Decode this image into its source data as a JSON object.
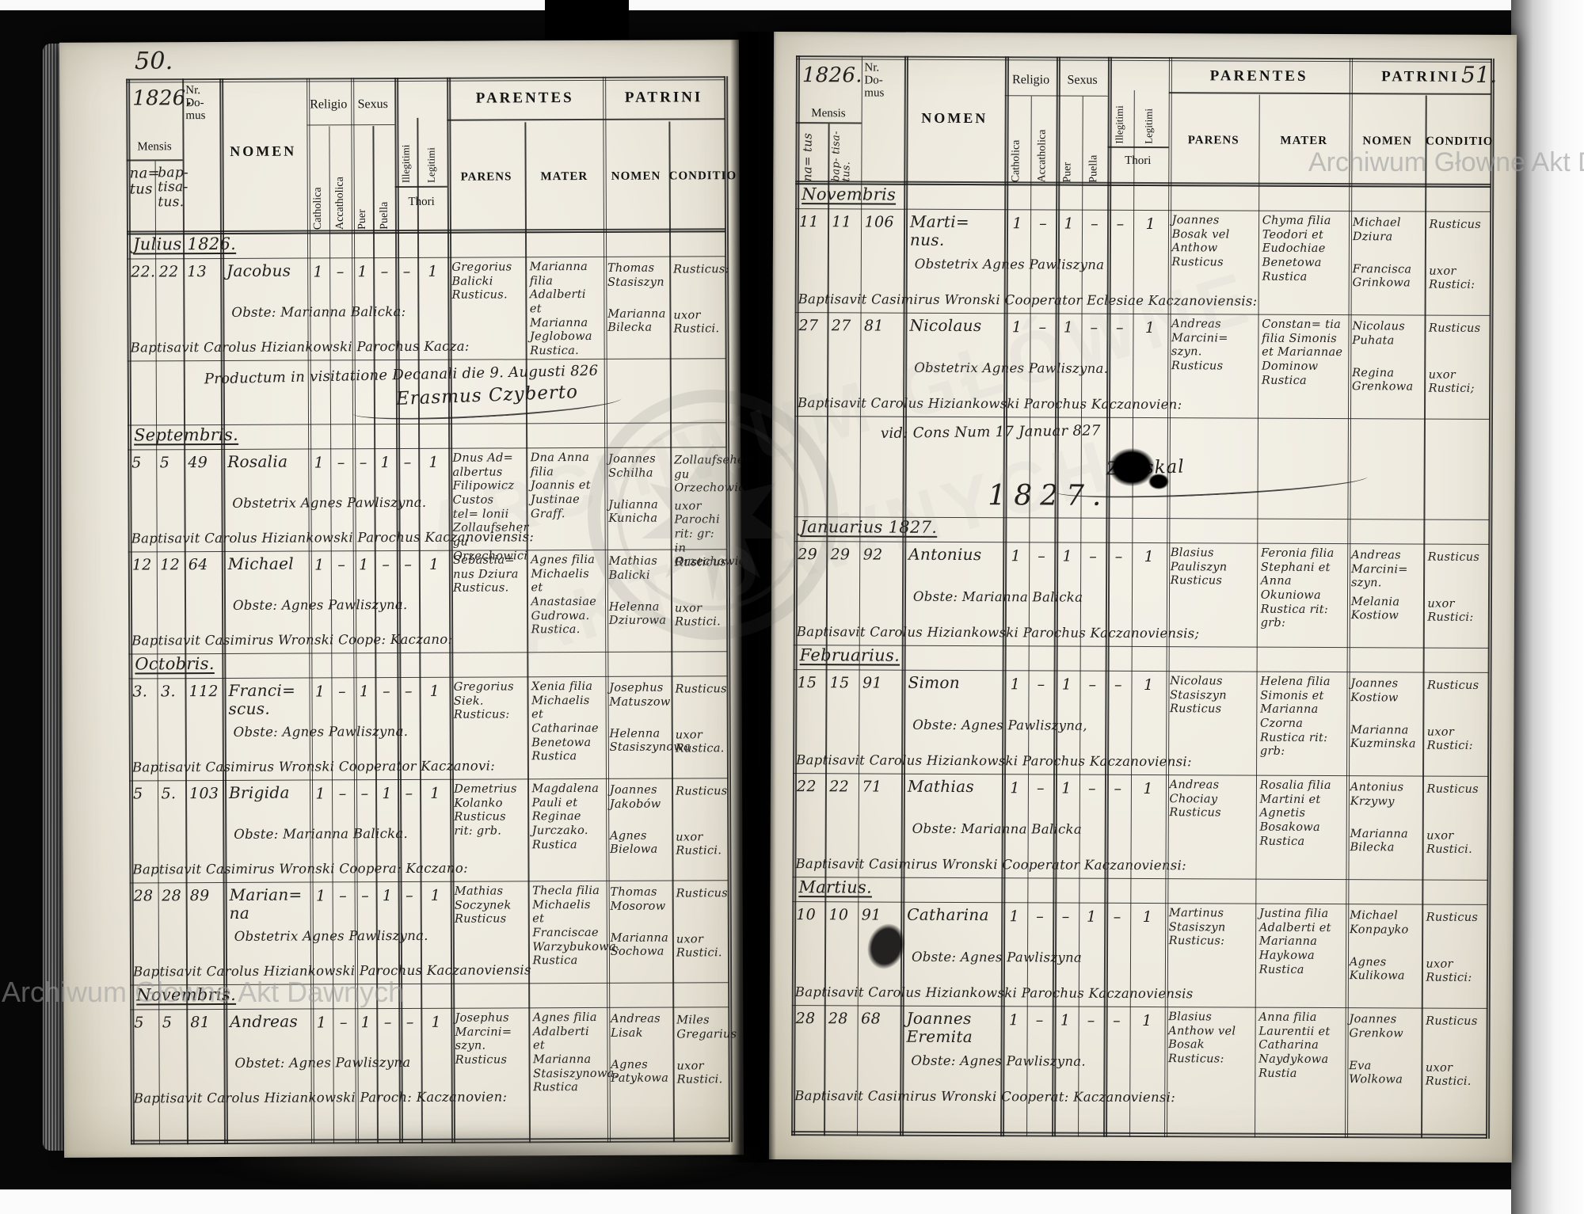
{
  "book": {
    "left_page_number": "50.",
    "right_page_number": "51.",
    "watermark": "Archiwum Głowne Akt Dawnych",
    "watermark_big_1": "ARCHIWUM GŁÓWNE",
    "watermark_big_2": "AKT DAWNYCH"
  },
  "header": {
    "year": "1826.",
    "nr_domus": "Nr.\nDo-\nmus",
    "mensis": "Mensis",
    "natus": "na=\ntus",
    "baptisatus": "bap-\ntisa-\ntus.",
    "nomen": "NOMEN",
    "religio": "Religio",
    "catholica": "Catholica",
    "accatholica": "Accatholica",
    "sexus": "Sexus",
    "puer": "Puer",
    "puella": "Puella",
    "illegitimi": "Illegitimi",
    "legitimi": "Legitimi",
    "thori": "Thori",
    "parentes": "PARENTES",
    "parens": "PARENS",
    "mater": "MATER",
    "patrini": "PATRINI",
    "patrini_nomen": "NOMEN",
    "conditio": "CONDITIO"
  },
  "left_page": {
    "sections": [
      {
        "month": "Julius 1826.",
        "records": [
          {
            "natus": "22.",
            "baptisatus": "22",
            "domus": "13",
            "nomen": "Jacobus",
            "catholica": "1",
            "accatholica": "–",
            "puer": "1",
            "puella": "–",
            "illegitimi": "–",
            "legitimi": "1",
            "obstetrix": "Obste: Marianna Balicka:",
            "baptisavit": "Baptisavit Carolus Hiziankowski Parochus Kacza:",
            "parens": "Gregorius Balicki Rusticus.",
            "mater": "Marianna filia Adalberti et Marianna Jeglobowa Rustica.",
            "patrini": [
              "Thomas Stasiszyn",
              "Marianna Bilecka"
            ],
            "conditio": [
              "Rusticus:",
              "uxor Rustici."
            ]
          }
        ],
        "note": {
          "line1": "Productum in visitatione Decanali die 9. Augusti 826",
          "signature": "Erasmus Czyberto"
        }
      },
      {
        "month": "Septembris.",
        "records": [
          {
            "natus": "5",
            "baptisatus": "5",
            "domus": "49",
            "nomen": "Rosalia",
            "catholica": "1",
            "accatholica": "–",
            "puer": "–",
            "puella": "1",
            "illegitimi": "–",
            "legitimi": "1",
            "obstetrix": "Obstetrix Agnes Pawliszyna.",
            "baptisavit": "Baptisavit Carolus Hiziankowski Parochus Kaczanoviensis:",
            "parens": "Dnus Ad= albertus Filipowicz Custos tel= lonii Zollaufseher gu Orzechowici",
            "mater": "Dna Anna filia Joannis et Justinae Graff.",
            "patrini": [
              "Joannes Schilha",
              "Julianna Kunicha"
            ],
            "conditio": [
              "Zollaufseher gu Orzechowici.",
              "uxor Parochi rit: gr: in Orzechowici."
            ]
          },
          {
            "natus": "12",
            "baptisatus": "12",
            "domus": "64",
            "nomen": "Michael",
            "catholica": "1",
            "accatholica": "–",
            "puer": "1",
            "puella": "–",
            "illegitimi": "–",
            "legitimi": "1",
            "obstetrix": "Obste: Agnes Pawliszyna.",
            "baptisavit": "Baptisavit Casimirus Wronski Coope: Kaczano:",
            "parens": "Sebastia= nus Dziura Rusticus.",
            "mater": "Agnes filia Michaelis et Anastasiae Gudrowa. Rustica.",
            "patrini": [
              "Mathias Balicki",
              "Helenna Dziurowa"
            ],
            "conditio": [
              "Rusticus",
              "uxor Rustici."
            ]
          }
        ]
      },
      {
        "month": "Octobris.",
        "records": [
          {
            "natus": "3.",
            "baptisatus": "3.",
            "domus": "112",
            "nomen": "Franci=\nscus.",
            "catholica": "1",
            "accatholica": "–",
            "puer": "1",
            "puella": "–",
            "illegitimi": "–",
            "legitimi": "1",
            "obstetrix": "Obste: Agnes Pawliszyna.",
            "baptisavit": "Baptisavit Casimirus Wronski Cooperator Kaczanovi:",
            "parens": "Gregorius Siek. Rusticus:",
            "mater": "Xenia filia Michaelis et Catharinae Benetowa Rustica",
            "patrini": [
              "Josephus Matuszow",
              "Helenna Stasiszynowa"
            ],
            "conditio": [
              "Rusticus",
              "uxor Rustica."
            ]
          },
          {
            "natus": "5",
            "baptisatus": "5.",
            "domus": "103",
            "nomen": "Brigida",
            "catholica": "1",
            "accatholica": "–",
            "puer": "–",
            "puella": "1",
            "illegitimi": "–",
            "legitimi": "1",
            "obstetrix": "Obste: Marianna Balicka.",
            "baptisavit": "Baptisavit Casimirus Wronski Coopera: Kaczano:",
            "parens": "Demetrius Kolanko Rusticus rit: grb.",
            "mater": "Magdalena Pauli et Reginae Jurczako. Rustica",
            "patrini": [
              "Joannes Jakobów",
              "Agnes Bielowa"
            ],
            "conditio": [
              "Rusticus",
              "uxor Rustici."
            ]
          },
          {
            "natus": "28",
            "baptisatus": "28",
            "domus": "89",
            "nomen": "Marian=\nna",
            "catholica": "1",
            "accatholica": "–",
            "puer": "–",
            "puella": "1",
            "illegitimi": "–",
            "legitimi": "1",
            "obstetrix": "Obstetrix Agnes Pawliszyna.",
            "baptisavit": "Baptisavit Carolus Hiziankowski Parochus Kaczanoviensis",
            "parens": "Mathias Soczynek Rusticus",
            "mater": "Thecla filia Michaelis et Franciscae Warzybukowa. Rustica",
            "patrini": [
              "Thomas Mosorow",
              "Marianna Sochowa"
            ],
            "conditio": [
              "Rusticus",
              "uxor Rustici."
            ]
          }
        ]
      },
      {
        "month": "Novembris.",
        "records": [
          {
            "natus": "5",
            "baptisatus": "5",
            "domus": "81",
            "nomen": "Andreas",
            "catholica": "1",
            "accatholica": "–",
            "puer": "1",
            "puella": "–",
            "illegitimi": "–",
            "legitimi": "1",
            "obstetrix": "Obstet: Agnes Pawliszyna",
            "baptisavit": "Baptisavit Carolus Hiziankowski Paroch: Kaczanovien:",
            "parens": "Josephus Marcini= szyn. Rusticus",
            "mater": "Agnes filia Adalberti et Marianna Stasiszynowa. Rustica",
            "patrini": [
              "Andreas Lisak",
              "Agnes Patykowa"
            ],
            "conditio": [
              "Miles Gregarius",
              "uxor Rustici."
            ]
          }
        ]
      }
    ]
  },
  "right_page": {
    "sections": [
      {
        "month": "Novembris",
        "records": [
          {
            "natus": "11",
            "baptisatus": "11",
            "domus": "106",
            "nomen": "Marti=\nnus.",
            "catholica": "1",
            "accatholica": "–",
            "puer": "1",
            "puella": "–",
            "illegitimi": "–",
            "legitimi": "1",
            "obstetrix": "Obstetrix Agnes Pawliszyna",
            "baptisavit": "Baptisavit Casimirus Wronski Cooperator Eclesiae Kaczanoviensis:",
            "parens": "Joannes Bosak vel Anthow Rusticus",
            "mater": "Chyma filia Teodori et Eudochiae Benetowa Rustica",
            "patrini": [
              "Michael Dziura",
              "Francisca Grinkowa"
            ],
            "conditio": [
              "Rusticus",
              "uxor Rustici:"
            ]
          },
          {
            "natus": "27",
            "baptisatus": "27",
            "domus": "81",
            "nomen": "Nicolaus",
            "catholica": "1",
            "accatholica": "–",
            "puer": "1",
            "puella": "–",
            "illegitimi": "–",
            "legitimi": "1",
            "obstetrix": "Obstetrix Agnes Pawliszyna.",
            "baptisavit": "Baptisavit Carolus Hiziankowski Parochus Kaczanovien:",
            "parens": "Andreas Marcini= szyn. Rusticus",
            "mater": "Constan= tia filia Simonis et Mariannae Dominow Rustica",
            "patrini": [
              "Nicolaus Puhata",
              "Regina Grenkowa"
            ],
            "conditio": [
              "Rusticus",
              "uxor Rustici;"
            ]
          }
        ],
        "note": {
          "line1": "vid: Cons Num 17 Januar 827",
          "signature": "Zimskal",
          "year_big": "1827."
        }
      },
      {
        "month": "Januarius 1827.",
        "records": [
          {
            "natus": "29",
            "baptisatus": "29",
            "domus": "92",
            "nomen": "Antonius",
            "catholica": "1",
            "accatholica": "–",
            "puer": "1",
            "puella": "–",
            "illegitimi": "–",
            "legitimi": "1",
            "obstetrix": "Obste: Marianna Balicka",
            "baptisavit": "Baptisavit Carolus Hiziankowski Parochus Kaczanoviensis;",
            "parens": "Blasius Pauliszyn Rusticus",
            "mater": "Feronia filia Stephani et Anna Okuniowa Rustica rit: grb:",
            "patrini": [
              "Andreas Marcini= szyn.",
              "Melania Kostiow"
            ],
            "conditio": [
              "Rusticus",
              "uxor Rustici:"
            ]
          }
        ]
      },
      {
        "month": "Februarius.",
        "records": [
          {
            "natus": "15",
            "baptisatus": "15",
            "domus": "91",
            "nomen": "Simon",
            "catholica": "1",
            "accatholica": "–",
            "puer": "1",
            "puella": "–",
            "illegitimi": "–",
            "legitimi": "1",
            "obstetrix": "Obste: Agnes Pawliszyna,",
            "baptisavit": "Baptisavit Carolus Hiziankowski Parochus Kaczanoviensi:",
            "parens": "Nicolaus Stasiszyn Rusticus",
            "mater": "Helena filia Simonis et Marianna Czorna Rustica rit: grb:",
            "patrini": [
              "Joannes Kostiow",
              "Marianna Kuzminska"
            ],
            "conditio": [
              "Rusticus",
              "uxor Rustici:"
            ]
          },
          {
            "natus": "22",
            "baptisatus": "22",
            "domus": "71",
            "nomen": "Mathias",
            "catholica": "1",
            "accatholica": "–",
            "puer": "1",
            "puella": "–",
            "illegitimi": "–",
            "legitimi": "1",
            "obstetrix": "Obste: Marianna Balicka",
            "baptisavit": "Baptisavit Casimirus Wronski Cooperator Kaczanoviensi:",
            "parens": "Andreas Chociay Rusticus",
            "mater": "Rosalia filia Martini et Agnetis Bosakowa Rustica",
            "patrini": [
              "Antonius Krzywy",
              "Marianna Bilecka"
            ],
            "conditio": [
              "Rusticus",
              "uxor Rustici."
            ]
          }
        ]
      },
      {
        "month": "Martius.",
        "records": [
          {
            "natus": "10",
            "baptisatus": "10",
            "domus": "91",
            "nomen": "Catharina",
            "catholica": "1",
            "accatholica": "–",
            "puer": "–",
            "puella": "1",
            "illegitimi": "–",
            "legitimi": "1",
            "obstetrix": "Obste: Agnes Pawliszyna",
            "baptisavit": "Baptisavit Carolus Hiziankowski Parochus Kaczanoviensis",
            "parens": "Martinus Stasiszyn Rusticus:",
            "mater": "Justina filia Adalberti et Marianna Haykowa Rustica",
            "patrini": [
              "Michael Konpayko",
              "Agnes Kulikowa"
            ],
            "conditio": [
              "Rusticus",
              "uxor Rustici:"
            ]
          },
          {
            "natus": "28",
            "baptisatus": "28",
            "domus": "68",
            "nomen": "Joannes\nEremita",
            "catholica": "1",
            "accatholica": "–",
            "puer": "1",
            "puella": "–",
            "illegitimi": "–",
            "legitimi": "1",
            "obstetrix": "Obste: Agnes Pawliszyna.",
            "baptisavit": "Baptisavit Casimirus Wronski Cooperat: Kaczanoviensi:",
            "parens": "Blasius Anthow vel Bosak Rusticus:",
            "mater": "Anna filia Laurentii et Catharina Naydykowa Rustia",
            "patrini": [
              "Joannes Grenkow",
              "Eva Wolkowa"
            ],
            "conditio": [
              "Rusticus",
              "uxor Rustici."
            ]
          }
        ]
      }
    ]
  }
}
